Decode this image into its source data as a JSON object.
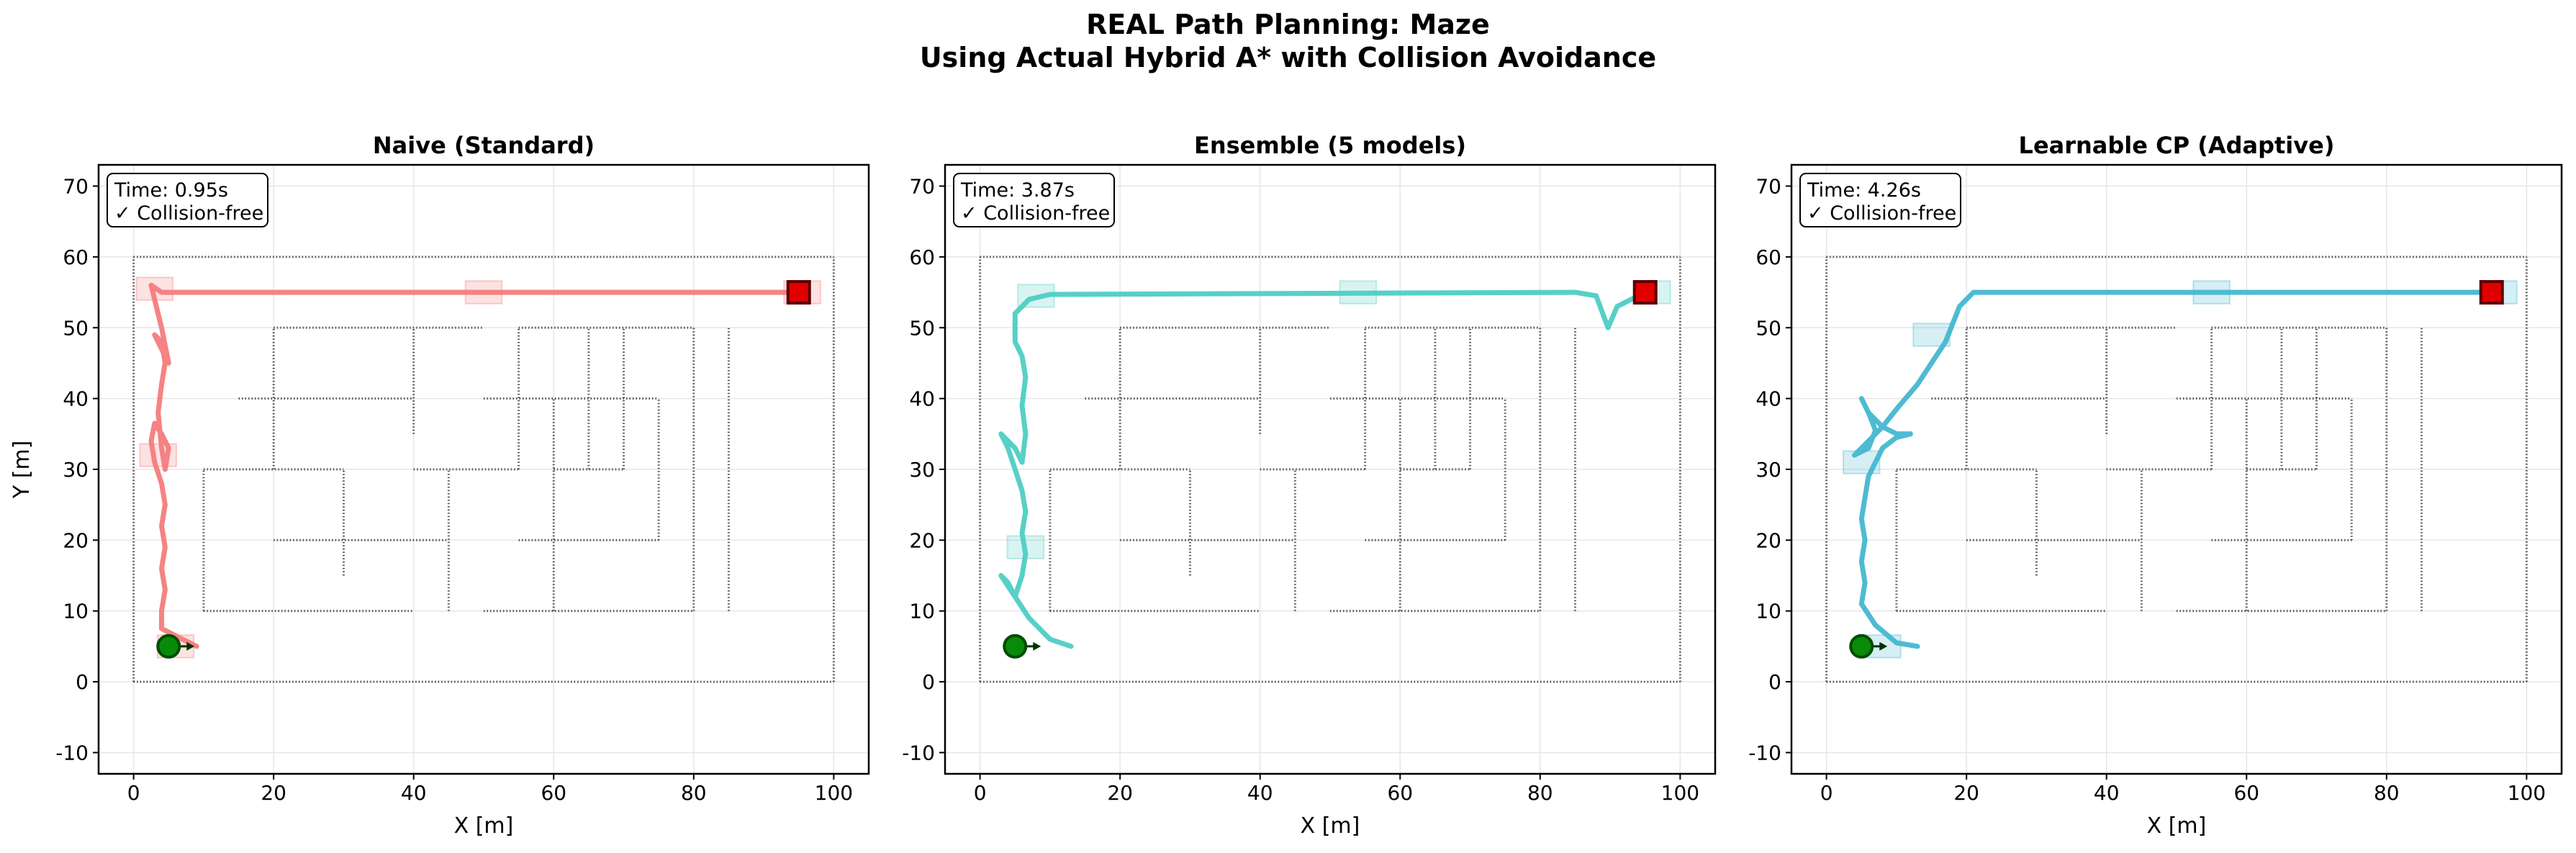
{
  "figure": {
    "title_line1": "REAL Path Planning: Maze",
    "title_line2": "Using Actual Hybrid A* with Collision Avoidance"
  },
  "chart_data": [
    {
      "type": "line",
      "title": "Naive (Standard)",
      "xlabel": "X [m]",
      "ylabel": "Y [m]",
      "xlim": [
        -5,
        105
      ],
      "ylim": [
        -13,
        73
      ],
      "xticks": [
        0,
        20,
        40,
        60,
        80,
        100
      ],
      "yticks": [
        -10,
        0,
        10,
        20,
        30,
        40,
        50,
        60,
        70
      ],
      "grid": true,
      "color": "#f47c7c",
      "info_time": "Time: 0.95s",
      "info_status": "✓ Collision-free",
      "start": [
        5,
        5
      ],
      "goal": [
        95,
        55
      ],
      "path": [
        [
          9,
          5
        ],
        [
          7,
          6
        ],
        [
          4,
          7.5
        ],
        [
          4,
          10
        ],
        [
          4.5,
          13
        ],
        [
          4,
          16
        ],
        [
          4.5,
          19
        ],
        [
          4,
          22
        ],
        [
          4.5,
          25
        ],
        [
          4,
          28
        ],
        [
          3,
          31
        ],
        [
          2.5,
          34
        ],
        [
          3,
          36.5
        ],
        [
          4,
          35
        ],
        [
          5,
          33
        ],
        [
          4.5,
          30
        ],
        [
          4,
          33
        ],
        [
          3.5,
          38
        ],
        [
          4,
          42
        ],
        [
          4.5,
          45
        ],
        [
          4,
          48
        ],
        [
          3,
          49
        ],
        [
          4,
          47
        ],
        [
          5,
          45
        ],
        [
          4,
          50
        ],
        [
          3,
          54
        ],
        [
          2.5,
          56
        ],
        [
          4,
          55
        ],
        [
          95,
          55
        ]
      ],
      "covers": [
        [
          6,
          5
        ],
        [
          3.5,
          32
        ],
        [
          3,
          55.5
        ],
        [
          50,
          55
        ],
        [
          95.5,
          55
        ]
      ]
    },
    {
      "type": "line",
      "title": "Ensemble (5 models)",
      "xlabel": "X [m]",
      "ylabel": "",
      "xlim": [
        -5,
        105
      ],
      "ylim": [
        -13,
        73
      ],
      "xticks": [
        0,
        20,
        40,
        60,
        80,
        100
      ],
      "yticks": [
        -10,
        0,
        10,
        20,
        30,
        40,
        50,
        60,
        70
      ],
      "grid": true,
      "color": "#4ecdc4",
      "info_time": "Time: 3.87s",
      "info_status": "✓ Collision-free",
      "start": [
        5,
        5
      ],
      "goal": [
        95,
        55
      ],
      "path": [
        [
          13,
          5
        ],
        [
          10,
          6
        ],
        [
          7,
          9
        ],
        [
          5,
          12
        ],
        [
          3,
          15
        ],
        [
          4,
          14
        ],
        [
          5,
          12
        ],
        [
          6,
          15
        ],
        [
          6.5,
          18
        ],
        [
          6,
          21
        ],
        [
          6.5,
          24
        ],
        [
          6,
          27
        ],
        [
          5,
          30
        ],
        [
          4,
          33
        ],
        [
          3,
          35
        ],
        [
          5,
          33
        ],
        [
          6,
          31
        ],
        [
          6.5,
          35
        ],
        [
          6,
          39
        ],
        [
          6.5,
          43
        ],
        [
          6,
          46
        ],
        [
          5,
          48
        ],
        [
          5,
          52
        ],
        [
          7,
          54
        ],
        [
          10,
          54.7
        ],
        [
          85,
          55
        ],
        [
          88,
          54.5
        ],
        [
          89.7,
          50
        ],
        [
          91,
          53
        ],
        [
          95,
          55
        ]
      ],
      "covers": [
        [
          8,
          54.5
        ],
        [
          54,
          55
        ],
        [
          96,
          55
        ],
        [
          6.5,
          19
        ]
      ]
    },
    {
      "type": "line",
      "title": "Learnable CP (Adaptive)",
      "xlabel": "X [m]",
      "ylabel": "",
      "xlim": [
        -5,
        105
      ],
      "ylim": [
        -13,
        73
      ],
      "xticks": [
        0,
        20,
        40,
        60,
        80,
        100
      ],
      "yticks": [
        -10,
        0,
        10,
        20,
        30,
        40,
        50,
        60,
        70
      ],
      "grid": true,
      "color": "#45b7d1",
      "info_time": "Time: 4.26s",
      "info_status": "✓ Collision-free",
      "start": [
        5,
        5
      ],
      "goal": [
        95,
        55
      ],
      "path": [
        [
          13,
          5
        ],
        [
          10,
          5.5
        ],
        [
          7,
          8
        ],
        [
          5,
          11
        ],
        [
          5.5,
          14
        ],
        [
          5,
          17
        ],
        [
          5.5,
          20
        ],
        [
          5,
          23
        ],
        [
          5.5,
          26
        ],
        [
          6,
          29
        ],
        [
          7,
          31
        ],
        [
          8,
          33
        ],
        [
          10,
          34.5
        ],
        [
          12,
          35
        ],
        [
          10,
          35
        ],
        [
          8,
          36
        ],
        [
          6,
          38
        ],
        [
          5,
          40
        ],
        [
          6,
          38
        ],
        [
          7,
          35.5
        ],
        [
          6,
          33
        ],
        [
          4,
          32
        ],
        [
          6,
          34
        ],
        [
          8,
          36
        ],
        [
          10,
          38.5
        ],
        [
          13,
          42
        ],
        [
          15,
          45
        ],
        [
          17,
          48
        ],
        [
          19,
          53
        ],
        [
          21,
          55
        ],
        [
          95,
          55
        ]
      ],
      "covers": [
        [
          8,
          5
        ],
        [
          5,
          31
        ],
        [
          15,
          49
        ],
        [
          55,
          55
        ],
        [
          96,
          55
        ]
      ]
    }
  ]
}
